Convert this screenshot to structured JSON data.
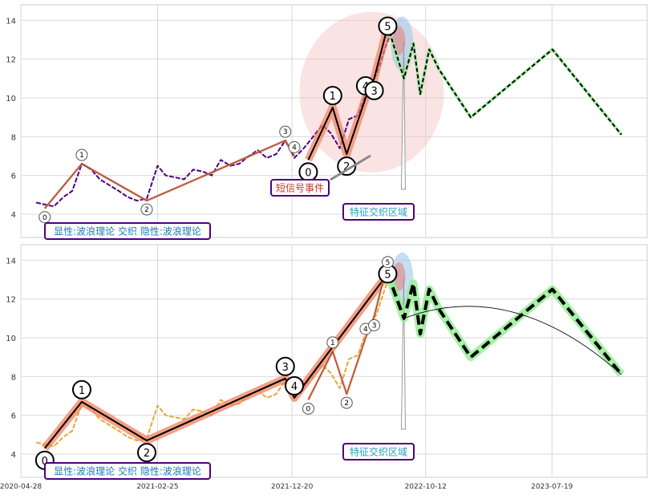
{
  "chart_data": [
    {
      "type": "line",
      "panel": "top",
      "ylim": [
        2.8,
        14.8
      ],
      "yticks": [
        4,
        6,
        8,
        10,
        12,
        14
      ],
      "price_series": {
        "color": "#4b0082",
        "style": "dashed",
        "x": [
          "2020-06-01",
          "2020-06-20",
          "2020-07-10",
          "2020-08-01",
          "2020-08-20",
          "2020-09-10",
          "2020-10-01",
          "2020-10-20",
          "2020-11-10",
          "2020-12-01",
          "2020-12-20",
          "2021-01-10",
          "2021-02-01",
          "2021-02-25",
          "2021-03-15",
          "2021-04-05",
          "2021-04-25",
          "2021-05-15",
          "2021-06-05",
          "2021-06-25",
          "2021-07-15",
          "2021-08-05",
          "2021-08-25",
          "2021-09-15",
          "2021-10-05",
          "2021-10-25",
          "2021-11-15",
          "2021-12-05",
          "2021-12-25",
          "2022-01-15",
          "2022-02-05",
          "2022-02-25",
          "2022-03-15",
          "2022-04-05",
          "2022-04-25",
          "2022-05-15",
          "2022-06-05",
          "2022-06-25",
          "2022-07-15",
          "2022-08-01"
        ],
        "y": [
          4.6,
          4.5,
          4.4,
          4.9,
          5.2,
          6.6,
          6.3,
          5.8,
          5.5,
          5.2,
          4.9,
          4.7,
          4.8,
          6.5,
          6.0,
          5.9,
          5.8,
          6.3,
          6.2,
          6.0,
          6.8,
          6.5,
          6.6,
          7.0,
          7.3,
          6.9,
          7.1,
          7.8,
          6.9,
          7.4,
          8.0,
          8.6,
          8.2,
          7.4,
          8.9,
          9.1,
          10.5,
          11.2,
          12.6,
          13.7
        ]
      },
      "wave_primary": {
        "x": [
          "2020-06-20",
          "2020-09-10",
          "2021-02-01",
          "2021-12-05",
          "2021-12-25"
        ],
        "y": [
          4.3,
          6.6,
          4.7,
          7.8,
          7.0
        ],
        "labels": [
          "0",
          "1",
          "2",
          "3",
          "4"
        ]
      },
      "wave_secondary": {
        "x": [
          "2022-01-25",
          "2022-03-20",
          "2022-04-20",
          "2022-06-01",
          "2022-06-20",
          "2022-07-20"
        ],
        "y": [
          6.8,
          9.5,
          7.1,
          10.0,
          11.0,
          13.7
        ],
        "labels": [
          "0",
          "1",
          "2",
          "4",
          "3",
          "5"
        ]
      },
      "forecast": {
        "x": [
          "2022-07-20",
          "2022-08-25",
          "2022-09-15",
          "2022-09-30",
          "2022-10-20",
          "2022-11-10",
          "2023-01-20",
          "2023-07-20",
          "2023-12-20"
        ],
        "y": [
          13.7,
          11.0,
          12.8,
          10.2,
          12.5,
          11.5,
          9.0,
          12.5,
          8.1
        ]
      },
      "annotations": {
        "event": "短信号事件",
        "zone": "特征交织区域",
        "legend": "显性:波浪理论 交织 隐性:波浪理论"
      }
    },
    {
      "type": "line",
      "panel": "bottom",
      "ylim": [
        2.8,
        14.8
      ],
      "yticks": [
        4,
        6,
        8,
        10,
        12,
        14
      ],
      "price_series": {
        "color": "#e8a830",
        "style": "dashed",
        "x": [
          "2020-06-01",
          "2020-06-20",
          "2020-07-10",
          "2020-08-01",
          "2020-08-20",
          "2020-09-10",
          "2020-10-01",
          "2020-10-20",
          "2020-11-10",
          "2020-12-01",
          "2020-12-20",
          "2021-01-10",
          "2021-02-01",
          "2021-02-25",
          "2021-03-15",
          "2021-04-05",
          "2021-04-25",
          "2021-05-15",
          "2021-06-05",
          "2021-06-25",
          "2021-07-15",
          "2021-08-05",
          "2021-08-25",
          "2021-09-15",
          "2021-10-05",
          "2021-10-25",
          "2021-11-15",
          "2021-12-05",
          "2021-12-25",
          "2022-01-15",
          "2022-02-05",
          "2022-02-25",
          "2022-03-15",
          "2022-04-05",
          "2022-04-25",
          "2022-05-15",
          "2022-06-05",
          "2022-06-25",
          "2022-07-15",
          "2022-08-01"
        ],
        "y": [
          4.6,
          4.5,
          4.4,
          4.9,
          5.2,
          6.6,
          6.3,
          5.8,
          5.5,
          5.2,
          4.9,
          4.7,
          4.8,
          6.5,
          6.0,
          5.9,
          5.8,
          6.3,
          6.2,
          6.0,
          6.8,
          6.5,
          6.6,
          7.0,
          7.3,
          6.9,
          7.1,
          7.8,
          6.9,
          7.4,
          8.0,
          8.6,
          8.2,
          7.4,
          8.9,
          9.1,
          10.5,
          11.2,
          12.6,
          13.7
        ]
      },
      "wave_primary": {
        "x": [
          "2020-06-20",
          "2020-09-10",
          "2021-02-01",
          "2021-12-05",
          "2021-12-25",
          "2022-07-20"
        ],
        "y": [
          4.3,
          6.7,
          4.7,
          7.9,
          6.9,
          13.3
        ],
        "labels": [
          "0",
          "1",
          "2",
          "3",
          "4",
          "5"
        ]
      },
      "wave_secondary": {
        "x": [
          "2022-01-25",
          "2022-03-20",
          "2022-04-20",
          "2022-06-01",
          "2022-06-20",
          "2022-07-20"
        ],
        "y": [
          6.8,
          9.3,
          7.1,
          10.0,
          11.1,
          13.9
        ],
        "labels": [
          "0",
          "1",
          "2",
          "4",
          "3",
          "5"
        ]
      },
      "forecast": {
        "x": [
          "2022-07-20",
          "2022-08-25",
          "2022-09-15",
          "2022-09-30",
          "2022-10-20",
          "2022-11-10",
          "2023-01-20",
          "2023-07-20",
          "2023-12-20"
        ],
        "y": [
          13.3,
          11.0,
          12.8,
          10.2,
          12.5,
          11.5,
          9.0,
          12.5,
          8.1
        ]
      },
      "annotations": {
        "zone": "特征交织区域",
        "legend": "显性:波浪理论 交织 隐性:波浪理论"
      }
    }
  ],
  "xaxis": {
    "range": [
      "2020-04-28",
      "2024-02-15"
    ],
    "ticks": [
      "2020-04-28",
      "2021-02-25",
      "2021-12-20",
      "2022-10-12",
      "2023-07-19"
    ]
  },
  "colors": {
    "grid": "#d9d9d9",
    "wave_highlight": "#f08060",
    "forecast_highlight": "#90ee90",
    "zone_circle": "#f4c0c0",
    "label_border": "#4b0082",
    "legend_text": "#1f77b4",
    "event_text": "#c0392b",
    "zone_text": "#2a9dbe"
  }
}
